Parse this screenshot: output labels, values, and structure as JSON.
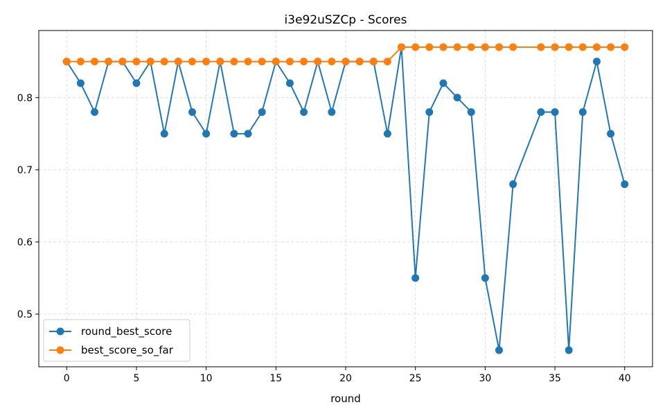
{
  "chart_data": {
    "type": "line",
    "title": "i3e92uSZCp - Scores",
    "xlabel": "round",
    "ylabel": "",
    "xlim": [
      -2,
      42
    ],
    "ylim": [
      0.427,
      0.893
    ],
    "xticks": [
      0,
      5,
      10,
      15,
      20,
      25,
      30,
      35,
      40
    ],
    "yticks": [
      0.5,
      0.6,
      0.7,
      0.8
    ],
    "grid": true,
    "legend_position": "lower-left",
    "series": [
      {
        "name": "round_best_score",
        "color": "#1f77b4",
        "x": [
          0,
          1,
          2,
          3,
          4,
          5,
          6,
          7,
          8,
          9,
          10,
          11,
          12,
          13,
          14,
          15,
          16,
          17,
          18,
          19,
          20,
          21,
          22,
          23,
          24,
          25,
          26,
          27,
          28,
          29,
          30,
          31,
          32,
          34,
          35,
          36,
          37,
          38,
          39,
          40
        ],
        "y": [
          0.85,
          0.82,
          0.78,
          0.85,
          0.85,
          0.82,
          0.85,
          0.75,
          0.85,
          0.78,
          0.75,
          0.85,
          0.75,
          0.75,
          0.78,
          0.85,
          0.82,
          0.78,
          0.85,
          0.78,
          0.85,
          0.85,
          0.85,
          0.75,
          0.87,
          0.55,
          0.78,
          0.82,
          0.8,
          0.78,
          0.55,
          0.45,
          0.68,
          0.78,
          0.78,
          0.45,
          0.78,
          0.85,
          0.75,
          0.68
        ]
      },
      {
        "name": "best_score_so_far",
        "color": "#ff7f0e",
        "x": [
          0,
          1,
          2,
          3,
          4,
          5,
          6,
          7,
          8,
          9,
          10,
          11,
          12,
          13,
          14,
          15,
          16,
          17,
          18,
          19,
          20,
          21,
          22,
          23,
          24,
          25,
          26,
          27,
          28,
          29,
          30,
          31,
          32,
          34,
          35,
          36,
          37,
          38,
          39,
          40
        ],
        "y": [
          0.85,
          0.85,
          0.85,
          0.85,
          0.85,
          0.85,
          0.85,
          0.85,
          0.85,
          0.85,
          0.85,
          0.85,
          0.85,
          0.85,
          0.85,
          0.85,
          0.85,
          0.85,
          0.85,
          0.85,
          0.85,
          0.85,
          0.85,
          0.85,
          0.87,
          0.87,
          0.87,
          0.87,
          0.87,
          0.87,
          0.87,
          0.87,
          0.87,
          0.87,
          0.87,
          0.87,
          0.87,
          0.87,
          0.87,
          0.87
        ]
      }
    ]
  }
}
